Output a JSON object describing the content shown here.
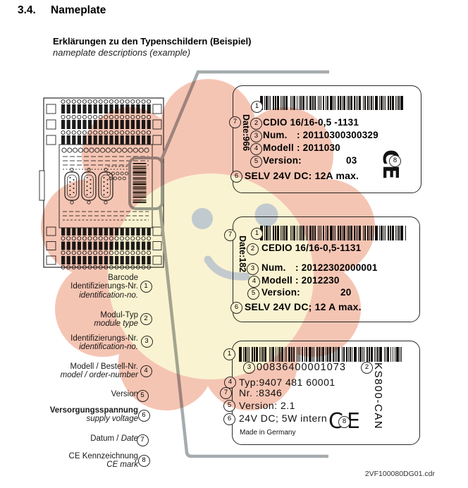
{
  "page": {
    "section_number": "3.4.",
    "section_title": "Nameplate",
    "subtitle_de": "Erklärungen zu den Typenschildern (Beispiel)",
    "subtitle_en": "nameplate descriptions (example)",
    "footer": "2VF100080DG01.cdr"
  },
  "legend": {
    "items": [
      {
        "num": "1",
        "rows": [
          [
            {
              "t": "Barcode",
              "i": false,
              "b": false
            }
          ],
          [
            {
              "t": "Identifizierungs-Nr.",
              "i": false,
              "b": false
            }
          ],
          [
            {
              "t": "identification-no.",
              "i": true,
              "b": false
            }
          ]
        ]
      },
      {
        "num": "2",
        "rows": [
          [
            {
              "t": "Modul-Typ",
              "i": false,
              "b": false
            }
          ],
          [
            {
              "t": "module type",
              "i": true,
              "b": false
            }
          ]
        ]
      },
      {
        "num": "3",
        "rows": [
          [
            {
              "t": "Identifizierungs-Nr.",
              "i": false,
              "b": false
            }
          ],
          [
            {
              "t": "identification-no.",
              "i": true,
              "b": false
            }
          ]
        ]
      },
      {
        "num": "4",
        "rows": [
          [
            {
              "t": "Modell / Bestell-Nr.",
              "i": false,
              "b": false
            }
          ],
          [
            {
              "t": "model / order-number",
              "i": true,
              "b": false
            }
          ]
        ]
      },
      {
        "num": "5",
        "rows": [
          [
            {
              "t": "Version",
              "i": false,
              "b": false
            }
          ]
        ]
      },
      {
        "num": "6",
        "rows": [
          [
            {
              "t": "Versorgungsspannung",
              "i": false,
              "b": true
            }
          ],
          [
            {
              "t": "supply voltage",
              "i": true,
              "b": false
            }
          ]
        ]
      },
      {
        "num": "7",
        "rows": [
          [
            {
              "t": "Datum / ",
              "i": false,
              "b": false
            },
            {
              "t": "Date",
              "i": true,
              "b": false
            }
          ]
        ]
      },
      {
        "num": "8",
        "rows": [
          [
            {
              "t": "CE Kennzeichnung",
              "i": false,
              "b": false
            }
          ],
          [
            {
              "t": "CE mark",
              "i": true,
              "b": false
            }
          ]
        ]
      }
    ]
  },
  "plates": [
    {
      "barcode_callout": "1",
      "date_callout": "7",
      "date_text": "Date:966",
      "type": {
        "callout": "2",
        "text": "CDIO 16/16-0,5 -1131"
      },
      "num": {
        "callout": "3",
        "label": "Num.",
        "value": ": 20110300300329"
      },
      "modell": {
        "callout": "4",
        "label": "Modell",
        "value": ": 2011030"
      },
      "version": {
        "callout": "5",
        "label": "Version:",
        "value": "03"
      },
      "supply": {
        "callout": "6",
        "text": "SELV 24V DC: 12A max."
      },
      "ce": {
        "callout": "8",
        "text": "CE"
      }
    },
    {
      "barcode_callout": "1",
      "date_callout": "7",
      "date_text": "Date:182",
      "type": {
        "callout": "2",
        "text": "CEDIO 16/16-0,5-1131"
      },
      "num": {
        "callout": "3",
        "label": "Num.",
        "value": ": 20122302000001"
      },
      "modell": {
        "callout": "4",
        "label": "Modell",
        "value": ": 2012230"
      },
      "version": {
        "callout": "5",
        "label": "Version:",
        "value": "20"
      },
      "supply": {
        "callout": "6",
        "text": "SELV 24V DC; 12 A max."
      }
    },
    {
      "barcode_callout": "1",
      "idline": {
        "callout": "3",
        "text": "00836400001073"
      },
      "product": {
        "callout": "2",
        "text": "KS800-CAN"
      },
      "typ": {
        "callout": "4",
        "text": "Typ:9407 481 60001"
      },
      "nr": {
        "callout": "7",
        "text": "Nr. :8346"
      },
      "version": {
        "callout": "5",
        "text": "Version: 2.1"
      },
      "supply": {
        "callout": "6",
        "text": "24V DC; 5W intern"
      },
      "made_in": "Made in Germany",
      "ce": {
        "callout": "8",
        "text": "CE"
      }
    }
  ],
  "colors": {
    "watermark_petals": "#efa186",
    "watermark_center": "#f7ecb5",
    "watermark_face": "#8599ae",
    "callout_line_gray": "#a6abae",
    "ink": "#1a1a1a"
  }
}
